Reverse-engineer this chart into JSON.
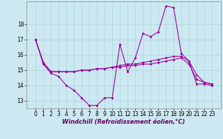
{
  "xlabel": "Windchill (Refroidissement éolien,°C)",
  "background_color": "#cce8f0",
  "line_color": "#990099",
  "x": [
    0,
    1,
    2,
    3,
    4,
    5,
    6,
    7,
    8,
    9,
    10,
    11,
    12,
    13,
    14,
    15,
    16,
    17,
    18,
    19,
    20,
    21,
    22,
    23
  ],
  "line1": [
    17.0,
    15.4,
    14.8,
    14.6,
    14.0,
    13.7,
    13.2,
    12.7,
    12.7,
    13.2,
    13.2,
    16.7,
    14.9,
    15.8,
    17.4,
    17.2,
    17.5,
    19.2,
    19.1,
    16.1,
    15.6,
    14.1,
    14.1,
    14.0
  ],
  "line2": [
    17.0,
    15.5,
    14.9,
    14.9,
    14.9,
    14.9,
    15.0,
    15.0,
    15.1,
    15.1,
    15.2,
    15.3,
    15.4,
    15.4,
    15.5,
    15.6,
    15.7,
    15.8,
    15.9,
    15.9,
    15.6,
    14.7,
    14.2,
    14.1
  ],
  "line3": [
    17.0,
    15.5,
    14.9,
    14.9,
    14.9,
    14.9,
    15.0,
    15.0,
    15.1,
    15.1,
    15.2,
    15.2,
    15.3,
    15.3,
    15.4,
    15.4,
    15.5,
    15.6,
    15.7,
    15.8,
    15.4,
    14.4,
    14.2,
    14.1
  ],
  "ylim": [
    12.5,
    19.5
  ],
  "yticks": [
    13,
    14,
    15,
    16,
    17,
    18
  ],
  "grid_color": "#aad4e0",
  "marker": "D",
  "markersize": 2.0,
  "linewidth": 0.8,
  "tick_fontsize": 5.5,
  "xlabel_fontsize": 6.0
}
